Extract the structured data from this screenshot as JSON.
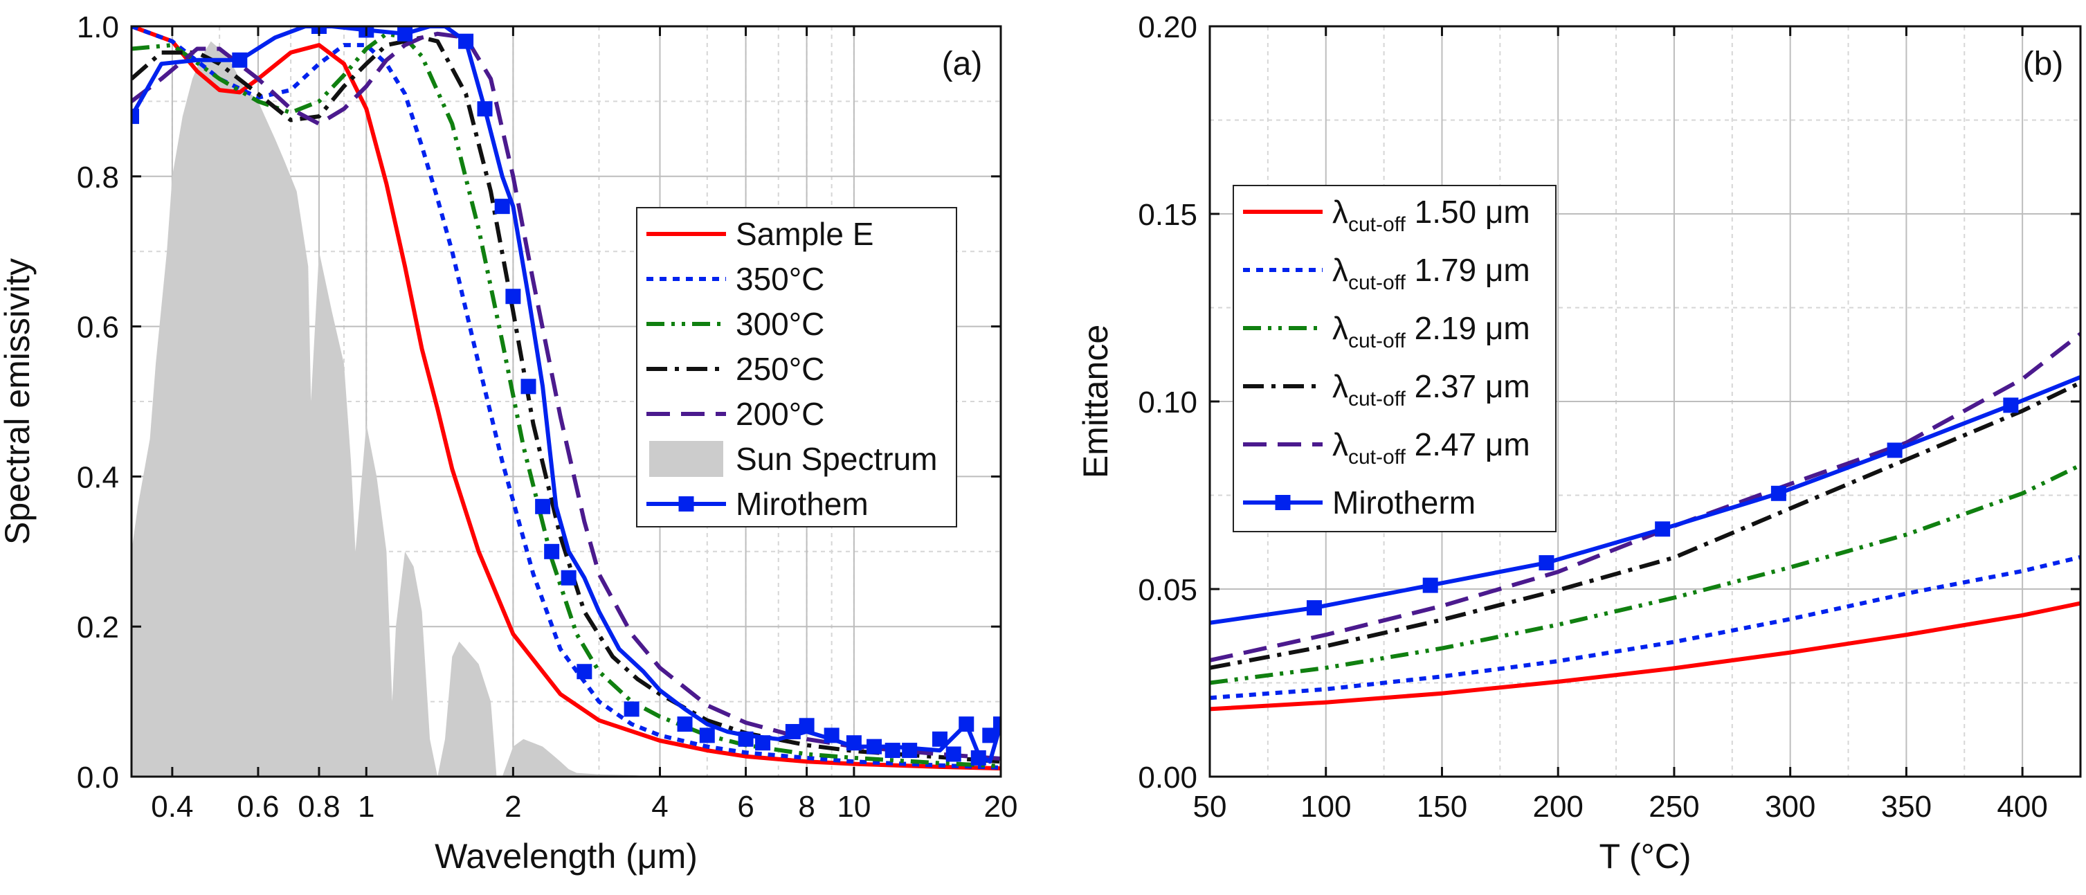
{
  "chart_data": [
    {
      "type": "line",
      "panel_label": "(a)",
      "xlabel": "Wavelength (μm)",
      "ylabel": "Spectral emissivity",
      "xscale": "log",
      "xlim": [
        0.33,
        20
      ],
      "ylim": [
        0,
        1
      ],
      "x_ticks": [
        0.4,
        0.6,
        0.8,
        1,
        2,
        4,
        6,
        8,
        10,
        20
      ],
      "x_tick_labels": [
        "0.4",
        "0.6",
        "0.8",
        "1",
        "2",
        "4",
        "6",
        "8",
        "10",
        "20"
      ],
      "y_ticks": [
        0,
        0.2,
        0.4,
        0.6,
        0.8,
        1.0
      ],
      "y_tick_labels": [
        "0.0",
        "0.2",
        "0.4",
        "0.6",
        "0.8",
        "1.0"
      ],
      "grid": true,
      "legend_position": "center-right",
      "series": [
        {
          "name": "Sample E",
          "color": "#ff0000",
          "dash": "solid",
          "x": [
            0.33,
            0.4,
            0.45,
            0.5,
            0.55,
            0.6,
            0.7,
            0.8,
            0.9,
            1.0,
            1.1,
            1.2,
            1.3,
            1.4,
            1.5,
            1.7,
            2.0,
            2.5,
            3.0,
            4.0,
            5.0,
            6.0,
            8.0,
            10,
            15,
            20
          ],
          "y": [
            1.0,
            0.98,
            0.94,
            0.915,
            0.912,
            0.93,
            0.965,
            0.975,
            0.95,
            0.89,
            0.79,
            0.68,
            0.57,
            0.49,
            0.41,
            0.3,
            0.19,
            0.11,
            0.075,
            0.048,
            0.035,
            0.027,
            0.02,
            0.017,
            0.013,
            0.011
          ]
        },
        {
          "name": "350°C",
          "color": "#0022ee",
          "dash": "dotted",
          "x": [
            0.33,
            0.4,
            0.5,
            0.6,
            0.7,
            0.8,
            0.9,
            1.0,
            1.1,
            1.2,
            1.3,
            1.4,
            1.5,
            1.7,
            1.9,
            2.2,
            2.5,
            3.0,
            3.5,
            4.0,
            5.0,
            6.0,
            8.0,
            10,
            15,
            20
          ],
          "y": [
            1.0,
            0.98,
            0.93,
            0.905,
            0.915,
            0.95,
            0.975,
            0.975,
            0.95,
            0.91,
            0.84,
            0.77,
            0.7,
            0.55,
            0.42,
            0.27,
            0.17,
            0.1,
            0.07,
            0.055,
            0.04,
            0.032,
            0.025,
            0.02,
            0.015,
            0.012
          ]
        },
        {
          "name": "300°C",
          "color": "#108010",
          "dash": "dashdotdot",
          "x": [
            0.33,
            0.4,
            0.5,
            0.6,
            0.7,
            0.8,
            0.9,
            1.0,
            1.1,
            1.2,
            1.3,
            1.5,
            1.7,
            1.9,
            2.1,
            2.4,
            2.7,
            3.0,
            3.5,
            4.0,
            5.0,
            6.0,
            8.0,
            10,
            15,
            20
          ],
          "y": [
            0.97,
            0.975,
            0.93,
            0.9,
            0.885,
            0.9,
            0.935,
            0.97,
            0.99,
            0.985,
            0.96,
            0.87,
            0.73,
            0.58,
            0.44,
            0.29,
            0.19,
            0.14,
            0.1,
            0.08,
            0.055,
            0.042,
            0.03,
            0.025,
            0.018,
            0.014
          ]
        },
        {
          "name": "250°C",
          "color": "#111111",
          "dash": "dashdot",
          "x": [
            0.33,
            0.38,
            0.45,
            0.5,
            0.6,
            0.7,
            0.8,
            0.9,
            1.0,
            1.1,
            1.2,
            1.3,
            1.4,
            1.6,
            1.8,
            2.0,
            2.2,
            2.5,
            2.8,
            3.2,
            3.6,
            4.0,
            5.0,
            6.0,
            8.0,
            10,
            15,
            20
          ],
          "y": [
            0.93,
            0.965,
            0.965,
            0.95,
            0.91,
            0.875,
            0.88,
            0.92,
            0.95,
            0.975,
            0.98,
            0.985,
            0.98,
            0.91,
            0.78,
            0.62,
            0.47,
            0.32,
            0.22,
            0.16,
            0.13,
            0.11,
            0.075,
            0.058,
            0.042,
            0.034,
            0.026,
            0.02
          ]
        },
        {
          "name": "200°C",
          "color": "#4b1a8e",
          "dash": "dashed",
          "x": [
            0.33,
            0.38,
            0.45,
            0.5,
            0.6,
            0.7,
            0.8,
            0.9,
            1.0,
            1.1,
            1.2,
            1.3,
            1.4,
            1.6,
            1.8,
            2.0,
            2.2,
            2.5,
            2.8,
            3.0,
            3.5,
            4.0,
            5.0,
            6.0,
            8.0,
            10,
            15,
            20
          ],
          "y": [
            0.9,
            0.93,
            0.97,
            0.97,
            0.93,
            0.89,
            0.87,
            0.89,
            0.92,
            0.955,
            0.975,
            0.985,
            0.99,
            0.985,
            0.93,
            0.8,
            0.66,
            0.48,
            0.34,
            0.27,
            0.19,
            0.145,
            0.095,
            0.072,
            0.05,
            0.04,
            0.03,
            0.024
          ]
        },
        {
          "name": "Mirothem",
          "color": "#0022ee",
          "dash": "solid",
          "marker": "square",
          "x": [
            0.33,
            0.38,
            0.45,
            0.55,
            0.65,
            0.75,
            0.85,
            1.0,
            1.2,
            1.35,
            1.45,
            1.6,
            1.75,
            1.9,
            2.0,
            2.15,
            2.3,
            2.45,
            2.6,
            2.8,
            3.0,
            3.3,
            3.7,
            4.0,
            4.5,
            5.0,
            5.5,
            6.0,
            7.0,
            8.0,
            9.0,
            10,
            12,
            15,
            17,
            18,
            19,
            20
          ],
          "y": [
            0.88,
            0.95,
            0.955,
            0.955,
            0.985,
            1.0,
            1.0,
            0.995,
            0.99,
            1.0,
            1.0,
            0.98,
            0.89,
            0.8,
            0.76,
            0.64,
            0.52,
            0.36,
            0.3,
            0.265,
            0.22,
            0.17,
            0.14,
            0.115,
            0.09,
            0.07,
            0.06,
            0.055,
            0.05,
            0.06,
            0.05,
            0.04,
            0.04,
            0.035,
            0.07,
            0.03,
            0.02,
            0.07
          ],
          "marker_x": [
            0.33,
            0.55,
            0.8,
            1.0,
            1.2,
            1.6,
            1.75,
            1.9,
            2.0,
            2.15,
            2.3,
            2.4,
            2.6,
            2.8,
            3.5,
            4.5,
            5.0,
            6.0,
            6.5,
            7.5,
            8.0,
            9.0,
            10,
            11,
            12,
            13,
            15,
            16,
            17,
            18,
            19,
            20
          ],
          "marker_y": [
            0.88,
            0.955,
            1.0,
            0.995,
            0.99,
            0.98,
            0.89,
            0.76,
            0.64,
            0.52,
            0.36,
            0.3,
            0.265,
            0.14,
            0.09,
            0.07,
            0.055,
            0.05,
            0.045,
            0.06,
            0.068,
            0.055,
            0.045,
            0.04,
            0.035,
            0.035,
            0.05,
            0.03,
            0.07,
            0.025,
            0.055,
            0.07
          ]
        },
        {
          "name": "Sun Spectrum",
          "color": "#cccccc",
          "dash": "fill",
          "x": [
            0.33,
            0.34,
            0.36,
            0.37,
            0.39,
            0.4,
            0.42,
            0.44,
            0.46,
            0.48,
            0.5,
            0.53,
            0.56,
            0.6,
            0.65,
            0.68,
            0.72,
            0.76,
            0.77,
            0.8,
            0.85,
            0.9,
            0.93,
            0.95,
            1.0,
            1.05,
            1.1,
            1.13,
            1.15,
            1.2,
            1.25,
            1.3,
            1.35,
            1.4,
            1.45,
            1.5,
            1.55,
            1.6,
            1.7,
            1.8,
            1.85,
            1.9,
            1.95,
            2.0,
            2.1,
            2.2,
            2.3,
            2.4,
            2.5,
            2.6,
            2.7,
            3.0,
            3.5,
            4.0
          ],
          "y": [
            0.3,
            0.36,
            0.45,
            0.55,
            0.7,
            0.8,
            0.88,
            0.93,
            0.96,
            0.98,
            0.97,
            0.95,
            0.92,
            0.9,
            0.85,
            0.82,
            0.78,
            0.68,
            0.5,
            0.7,
            0.62,
            0.55,
            0.42,
            0.3,
            0.47,
            0.4,
            0.3,
            0.1,
            0.2,
            0.3,
            0.28,
            0.22,
            0.05,
            0.0,
            0.05,
            0.16,
            0.18,
            0.17,
            0.15,
            0.1,
            0.0,
            0.0,
            0.02,
            0.04,
            0.05,
            0.045,
            0.04,
            0.03,
            0.02,
            0.01,
            0.005,
            0.003,
            0.002,
            0.0
          ]
        }
      ]
    },
    {
      "type": "line",
      "panel_label": "(b)",
      "xlabel": "T (°C)",
      "ylabel": "Emittance",
      "xlim": [
        50,
        425
      ],
      "ylim": [
        0,
        0.2
      ],
      "x_ticks": [
        50,
        100,
        150,
        200,
        250,
        300,
        350,
        400
      ],
      "x_tick_labels": [
        "50",
        "100",
        "150",
        "200",
        "250",
        "300",
        "350",
        "400"
      ],
      "y_ticks": [
        0,
        0.05,
        0.1,
        0.15,
        0.2
      ],
      "y_tick_labels": [
        "0.00",
        "0.05",
        "0.10",
        "0.15",
        "0.20"
      ],
      "grid": true,
      "legend_position": "center-left",
      "legend_prefix": "λ",
      "legend_subscript": "cut-off",
      "series": [
        {
          "name": "λcut-off 1.50 μm",
          "value_label": "1.50 μm",
          "color": "#ff0000",
          "dash": "solid",
          "x": [
            50,
            100,
            150,
            200,
            250,
            300,
            350,
            400,
            425
          ],
          "y": [
            0.018,
            0.0198,
            0.0222,
            0.0253,
            0.0289,
            0.0331,
            0.0378,
            0.043,
            0.0462
          ]
        },
        {
          "name": "λcut-off 1.79 μm",
          "value_label": "1.79 μm",
          "color": "#0022ee",
          "dash": "dotted",
          "x": [
            50,
            100,
            150,
            200,
            250,
            300,
            350,
            400,
            425
          ],
          "y": [
            0.021,
            0.0233,
            0.0267,
            0.0308,
            0.0359,
            0.042,
            0.0488,
            0.0548,
            0.0585
          ]
        },
        {
          "name": "λcut-off 2.19 μm",
          "value_label": "2.19 μm",
          "color": "#108010",
          "dash": "dashdotdot",
          "x": [
            50,
            100,
            150,
            200,
            250,
            300,
            350,
            400,
            425
          ],
          "y": [
            0.025,
            0.029,
            0.0342,
            0.0405,
            0.0477,
            0.0558,
            0.0645,
            0.0755,
            0.083
          ]
        },
        {
          "name": "λcut-off 2.37 μm",
          "value_label": "2.37 μm",
          "color": "#111111",
          "dash": "dashdot",
          "x": [
            50,
            100,
            150,
            200,
            250,
            300,
            350,
            400,
            425
          ],
          "y": [
            0.029,
            0.0348,
            0.0418,
            0.0497,
            0.0584,
            0.0715,
            0.0845,
            0.0975,
            0.105
          ]
        },
        {
          "name": "λcut-off 2.47 μm",
          "value_label": "2.47 μm",
          "color": "#4b1a8e",
          "dash": "dashed",
          "x": [
            50,
            100,
            150,
            200,
            250,
            300,
            350,
            400,
            425
          ],
          "y": [
            0.031,
            0.0378,
            0.0455,
            0.0546,
            0.0668,
            0.078,
            0.089,
            0.106,
            0.118
          ]
        },
        {
          "name": "Mirotherm",
          "value_label": "Mirotherm",
          "color": "#0022ee",
          "dash": "solid",
          "marker": "square",
          "x": [
            50,
            95,
            145,
            195,
            245,
            295,
            345,
            395,
            425
          ],
          "y": [
            0.041,
            0.045,
            0.051,
            0.057,
            0.066,
            0.0755,
            0.087,
            0.099,
            0.1065
          ],
          "marker_x": [
            95,
            145,
            195,
            245,
            295,
            345,
            395
          ],
          "marker_y": [
            0.045,
            0.051,
            0.057,
            0.066,
            0.0755,
            0.087,
            0.099
          ]
        }
      ]
    }
  ]
}
